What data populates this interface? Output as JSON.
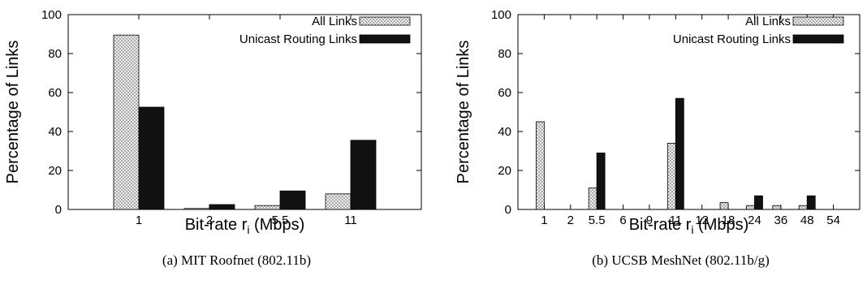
{
  "chart_data": [
    {
      "type": "bar",
      "caption": "(a) MIT Roofnet (802.11b)",
      "xlabel": "Bit-rate r",
      "xlabel_subscript": "i",
      "xlabel_unit": " (Mbps)",
      "ylabel": "Percentage of Links",
      "ylim": [
        0,
        100
      ],
      "yticks": [
        "0",
        "20",
        "40",
        "60",
        "80",
        "100"
      ],
      "categories": [
        "1",
        "2",
        "5.5",
        "11"
      ],
      "series": [
        {
          "name": "All Links",
          "values": [
            89.5,
            0.5,
            2,
            8
          ]
        },
        {
          "name": "Unicast Routing Links",
          "values": [
            52.5,
            2.5,
            9.5,
            35.5
          ]
        }
      ],
      "legend": "top-right",
      "grid": false
    },
    {
      "type": "bar",
      "caption": "(b) UCSB MeshNet (802.11b/g)",
      "xlabel": "Bit-rate r",
      "xlabel_subscript": "i",
      "xlabel_unit": " (Mbps)",
      "ylabel": "Percentage of Links",
      "ylim": [
        0,
        100
      ],
      "yticks": [
        "0",
        "20",
        "40",
        "60",
        "80",
        "100"
      ],
      "categories": [
        "1",
        "2",
        "5.5",
        "6",
        "9",
        "11",
        "12",
        "18",
        "24",
        "36",
        "48",
        "54"
      ],
      "series": [
        {
          "name": "All Links",
          "values": [
            45,
            0,
            11,
            0,
            0,
            34,
            0,
            3.5,
            2,
            2,
            2,
            0
          ]
        },
        {
          "name": "Unicast Routing Links",
          "values": [
            0,
            0,
            29,
            0,
            0,
            57,
            0,
            0,
            7,
            0,
            7,
            0
          ]
        }
      ],
      "legend": "top-right",
      "grid": false
    }
  ],
  "colors": {
    "all_links_pattern": "#9a9a9a",
    "unicast_fill": "#111111"
  }
}
